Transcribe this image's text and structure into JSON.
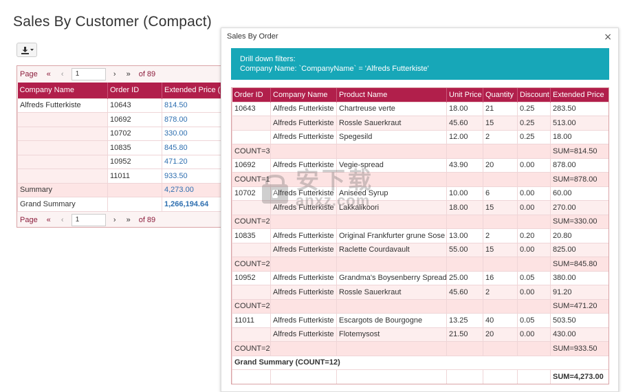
{
  "page_title": "Sales By Customer (Compact)",
  "left": {
    "pager_top": {
      "label": "Page",
      "page": "1",
      "of": "of 89"
    },
    "pager_bottom": {
      "label": "Page",
      "page": "1",
      "of": "of 89"
    },
    "columns": [
      "Company Name",
      "Order ID",
      "Extended Price (S"
    ],
    "rows": [
      {
        "company": "Alfreds Futterkiste",
        "order_id": "10643",
        "price": "814.50"
      },
      {
        "company": "",
        "order_id": "10692",
        "price": "878.00"
      },
      {
        "company": "",
        "order_id": "10702",
        "price": "330.00"
      },
      {
        "company": "",
        "order_id": "10835",
        "price": "845.80"
      },
      {
        "company": "",
        "order_id": "10952",
        "price": "471.20"
      },
      {
        "company": "",
        "order_id": "11011",
        "price": "933.50"
      }
    ],
    "summary": {
      "label": "Summary",
      "price": "4,273.00"
    },
    "grand_summary": {
      "label": "Grand Summary",
      "price": "1,266,194.64"
    }
  },
  "modal": {
    "title": "Sales By Order",
    "close_glyph": "×",
    "filters_title": "Drill down filters:",
    "filters_value": "Company Name: `CompanyName` = 'Alfreds Futterkiste'",
    "columns": [
      "Order ID",
      "Company Name",
      "Product Name",
      "Unit Price",
      "Quantity",
      "Discount",
      "Extended Price"
    ],
    "rows": [
      {
        "type": "data",
        "cells": [
          "10643",
          "Alfreds Futterkiste",
          "Chartreuse verte",
          "18.00",
          "21",
          "0.25",
          "283.50"
        ]
      },
      {
        "type": "data",
        "cells": [
          "",
          "Alfreds Futterkiste",
          "Rossle Sauerkraut",
          "45.60",
          "15",
          "0.25",
          "513.00"
        ]
      },
      {
        "type": "data",
        "cells": [
          "",
          "Alfreds Futterkiste",
          "Spegesild",
          "12.00",
          "2",
          "0.25",
          "18.00"
        ]
      },
      {
        "type": "count",
        "cells": [
          "COUNT=3",
          "",
          "",
          "",
          "",
          "",
          "SUM=814.50"
        ]
      },
      {
        "type": "data",
        "cells": [
          "10692",
          "Alfreds Futterkiste",
          "Vegie-spread",
          "43.90",
          "20",
          "0.00",
          "878.00"
        ]
      },
      {
        "type": "count",
        "cells": [
          "COUNT=1",
          "",
          "",
          "",
          "",
          "",
          "SUM=878.00"
        ]
      },
      {
        "type": "data",
        "cells": [
          "10702",
          "Alfreds Futterkiste",
          "Aniseed Syrup",
          "10.00",
          "6",
          "0.00",
          "60.00"
        ]
      },
      {
        "type": "data",
        "cells": [
          "",
          "Alfreds Futterkiste",
          "Lakkalikoori",
          "18.00",
          "15",
          "0.00",
          "270.00"
        ]
      },
      {
        "type": "count",
        "cells": [
          "COUNT=2",
          "",
          "",
          "",
          "",
          "",
          "SUM=330.00"
        ]
      },
      {
        "type": "data",
        "cells": [
          "10835",
          "Alfreds Futterkiste",
          "Original Frankfurter grune Sose",
          "13.00",
          "2",
          "0.20",
          "20.80"
        ]
      },
      {
        "type": "data",
        "cells": [
          "",
          "Alfreds Futterkiste",
          "Raclette Courdavault",
          "55.00",
          "15",
          "0.00",
          "825.00"
        ]
      },
      {
        "type": "count",
        "cells": [
          "COUNT=2",
          "",
          "",
          "",
          "",
          "",
          "SUM=845.80"
        ]
      },
      {
        "type": "data",
        "cells": [
          "10952",
          "Alfreds Futterkiste",
          "Grandma's Boysenberry Spread",
          "25.00",
          "16",
          "0.05",
          "380.00"
        ]
      },
      {
        "type": "data",
        "cells": [
          "",
          "Alfreds Futterkiste",
          "Rossle Sauerkraut",
          "45.60",
          "2",
          "0.00",
          "91.20"
        ]
      },
      {
        "type": "count",
        "cells": [
          "COUNT=2",
          "",
          "",
          "",
          "",
          "",
          "SUM=471.20"
        ]
      },
      {
        "type": "data",
        "cells": [
          "11011",
          "Alfreds Futterkiste",
          "Escargots de Bourgogne",
          "13.25",
          "40",
          "0.05",
          "503.50"
        ]
      },
      {
        "type": "data",
        "cells": [
          "",
          "Alfreds Futterkiste",
          "Flotemysost",
          "21.50",
          "20",
          "0.00",
          "430.00"
        ]
      },
      {
        "type": "count",
        "cells": [
          "COUNT=2",
          "",
          "",
          "",
          "",
          "",
          "SUM=933.50"
        ]
      }
    ],
    "grand_summary_label": "Grand Summary (COUNT=12)",
    "grand_summary_sum": "SUM=4,273.00"
  },
  "watermark": {
    "cn": "安下载",
    "url": "anxz.com"
  },
  "colors": {
    "header": "#b11f4b",
    "filter_bar": "#17a7b8",
    "link": "#2f6fb0"
  }
}
